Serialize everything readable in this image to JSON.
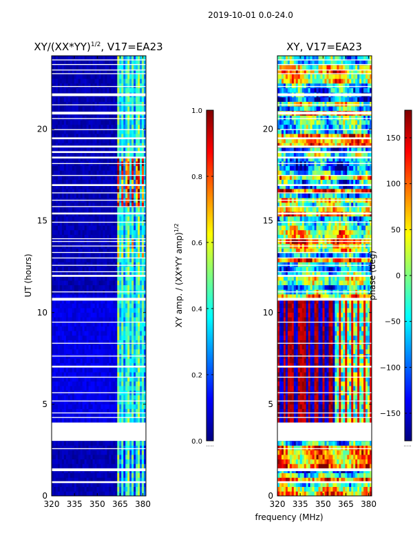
{
  "suptitle": "2019-10-01 0.0-24.0",
  "colors": {
    "jet": [
      "#00007f",
      "#0000ff",
      "#007fff",
      "#00ffff",
      "#7fff7f",
      "#ffff00",
      "#ff7f00",
      "#ff0000",
      "#7f0000"
    ],
    "gap": "#ffffff"
  },
  "chart_data": [
    {
      "type": "heatmap",
      "title": "XY/(XX*YY)",
      "title_sup": "1/2",
      "title_suffix": ", V17=EA23",
      "xlabel": "",
      "ylabel": "UT (hours)",
      "xlim": [
        320,
        382
      ],
      "ylim": [
        0,
        24
      ],
      "xticks": [
        320,
        335,
        350,
        365,
        380
      ],
      "yticks": [
        0,
        5,
        10,
        15,
        20
      ],
      "colorbar": {
        "label": "XY amp. / (XX*YY amp)",
        "label_sup": "1/2",
        "range": [
          0.0,
          1.0
        ],
        "ticks": [
          "0.0",
          "0.2",
          "0.4",
          "0.6",
          "0.8",
          "1.0"
        ],
        "tick_values": [
          0.0,
          0.2,
          0.4,
          0.6,
          0.8,
          1.0
        ]
      },
      "description_of_values": "amplitude ~0.05 below 363 MHz, ~0.3-0.5 bands 363-380 MHz, peaks ~0.7 near UT 16-18"
    },
    {
      "type": "heatmap",
      "title": "XY, V17=EA23",
      "xlabel": "frequency (MHz)",
      "ylabel": "",
      "xlim": [
        320,
        382
      ],
      "ylim": [
        0,
        24
      ],
      "xticks": [
        320,
        335,
        350,
        365,
        380
      ],
      "yticks": [
        0,
        5,
        10,
        15,
        20
      ],
      "colorbar": {
        "label": "phase (deg)",
        "range": [
          -180,
          180
        ],
        "ticks": [
          "150",
          "100",
          "50",
          "0",
          "−50",
          "−100",
          "−150"
        ],
        "tick_values": [
          150,
          100,
          50,
          0,
          -50,
          -100,
          -150
        ]
      }
    }
  ],
  "gaps_ut": [
    [
      3.0,
      4.0
    ],
    [
      1.35,
      1.5
    ],
    [
      0.7,
      0.8
    ],
    [
      2.55,
      2.6
    ],
    [
      4.25,
      4.3
    ],
    [
      4.5,
      4.55
    ],
    [
      5.15,
      5.2
    ],
    [
      5.6,
      5.65
    ],
    [
      6.45,
      6.5
    ],
    [
      7.0,
      7.1
    ],
    [
      7.6,
      7.65
    ],
    [
      8.3,
      8.35
    ],
    [
      9.45,
      9.5
    ],
    [
      10.65,
      10.8
    ],
    [
      11.1,
      11.15
    ],
    [
      11.95,
      12.05
    ],
    [
      12.2,
      12.25
    ],
    [
      12.55,
      12.6
    ],
    [
      12.95,
      13.0
    ],
    [
      13.25,
      13.3
    ],
    [
      13.6,
      13.65
    ],
    [
      13.85,
      13.9
    ],
    [
      14.0,
      14.05
    ],
    [
      14.9,
      14.95
    ],
    [
      15.35,
      15.45
    ],
    [
      15.75,
      15.8
    ],
    [
      16.1,
      16.15
    ],
    [
      16.5,
      16.55
    ],
    [
      16.9,
      17.0
    ],
    [
      17.45,
      17.5
    ],
    [
      18.1,
      18.15
    ],
    [
      18.4,
      18.5
    ],
    [
      18.7,
      18.8
    ],
    [
      19.0,
      19.1
    ],
    [
      19.45,
      19.55
    ],
    [
      19.95,
      20.0
    ],
    [
      20.55,
      20.6
    ],
    [
      20.8,
      20.95
    ],
    [
      21.3,
      21.35
    ],
    [
      21.8,
      21.95
    ],
    [
      22.3,
      22.35
    ],
    [
      23.0,
      23.05
    ],
    [
      23.2,
      23.25
    ],
    [
      23.5,
      23.55
    ],
    [
      23.75,
      23.8
    ]
  ]
}
